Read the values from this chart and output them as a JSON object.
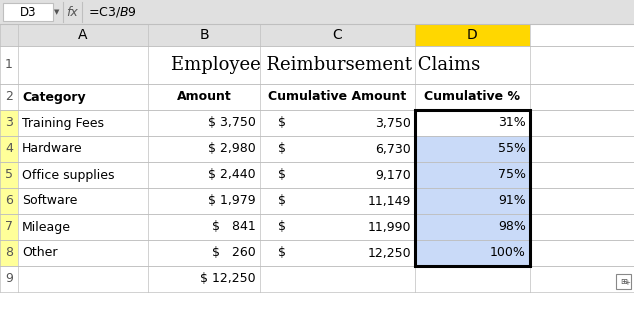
{
  "title": "Employee Reimbursement Claims",
  "formula_bar_cell": "D3",
  "formula_bar_formula": "=C3/$B$9",
  "col_headers": [
    "A",
    "B",
    "C",
    "D"
  ],
  "headers": [
    "Category",
    "Amount",
    "Cumulative Amount",
    "Cumulative %"
  ],
  "categories": [
    "Training Fees",
    "Hardware",
    "Office supplies",
    "Software",
    "Mileage",
    "Other"
  ],
  "amounts": [
    "$ 3,750",
    "$ 2,980",
    "$ 2,440",
    "$ 1,979",
    "$   841",
    "$   260"
  ],
  "cumulative_amounts": [
    "3,750",
    "6,730",
    "9,170",
    "11,149",
    "11,990",
    "12,250"
  ],
  "cumulative_pcts": [
    "31%",
    "55%",
    "75%",
    "91%",
    "98%",
    "100%"
  ],
  "total_row_amount": "$ 12,250",
  "bg_header": "#e0e0e0",
  "bg_yellow": "#ffff99",
  "bg_col_d_header": "#ffd700",
  "bg_blue": "#c9daf8",
  "bg_white": "#ffffff",
  "border_color": "#000000",
  "grid_color": "#bfbfbf",
  "text_color": "#000000",
  "figsize": [
    6.34,
    3.12
  ],
  "dpi": 100
}
